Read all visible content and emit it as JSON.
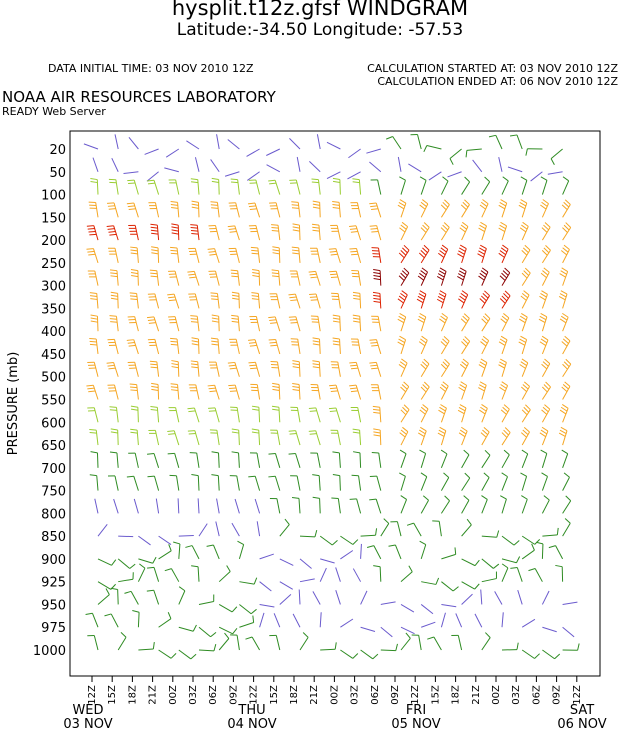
{
  "header": {
    "title": "hysplit.t12z.gfsf WINDGRAM",
    "subtitle": "Latitude:-34.50 Longitude: -57.53",
    "data_initial_time": "DATA INITIAL TIME: 03 NOV 2010 12Z",
    "calc_started": "CALCULATION STARTED AT: 03 NOV 2010 12Z",
    "calc_ended": "CALCULATION ENDED AT: 06 NOV 2010 12Z",
    "organization": "NOAA AIR RESOURCES LABORATORY",
    "server": "READY Web Server"
  },
  "chart_data": {
    "type": "windgram",
    "ylabel": "PRESSURE (mb)",
    "pressure_levels": [
      "20",
      "50",
      "100",
      "150",
      "200",
      "250",
      "300",
      "350",
      "400",
      "450",
      "500",
      "550",
      "600",
      "650",
      "700",
      "750",
      "800",
      "850",
      "900",
      "925",
      "950",
      "975",
      "1000"
    ],
    "time_ticks": [
      "12Z",
      "15Z",
      "18Z",
      "21Z",
      "00Z",
      "03Z",
      "06Z",
      "09Z",
      "12Z",
      "15Z",
      "18Z",
      "21Z",
      "00Z",
      "03Z",
      "06Z",
      "09Z",
      "12Z",
      "15Z",
      "18Z",
      "21Z",
      "00Z",
      "03Z",
      "06Z",
      "09Z",
      "12Z"
    ],
    "day_labels": [
      {
        "day": "WED",
        "date": "03 NOV"
      },
      {
        "day": "THU",
        "date": "04 NOV"
      },
      {
        "day": "FRI",
        "date": "05 NOV"
      },
      {
        "day": "SAT",
        "date": "06 NOV"
      }
    ],
    "speed_colors": {
      "light": "#6a5acd",
      "moderate": "#2e8b22",
      "fresh": "#9acd32",
      "strong": "#f5a623",
      "very_strong": "#dd2200",
      "extreme": "#8b0000"
    },
    "grid": false
  }
}
